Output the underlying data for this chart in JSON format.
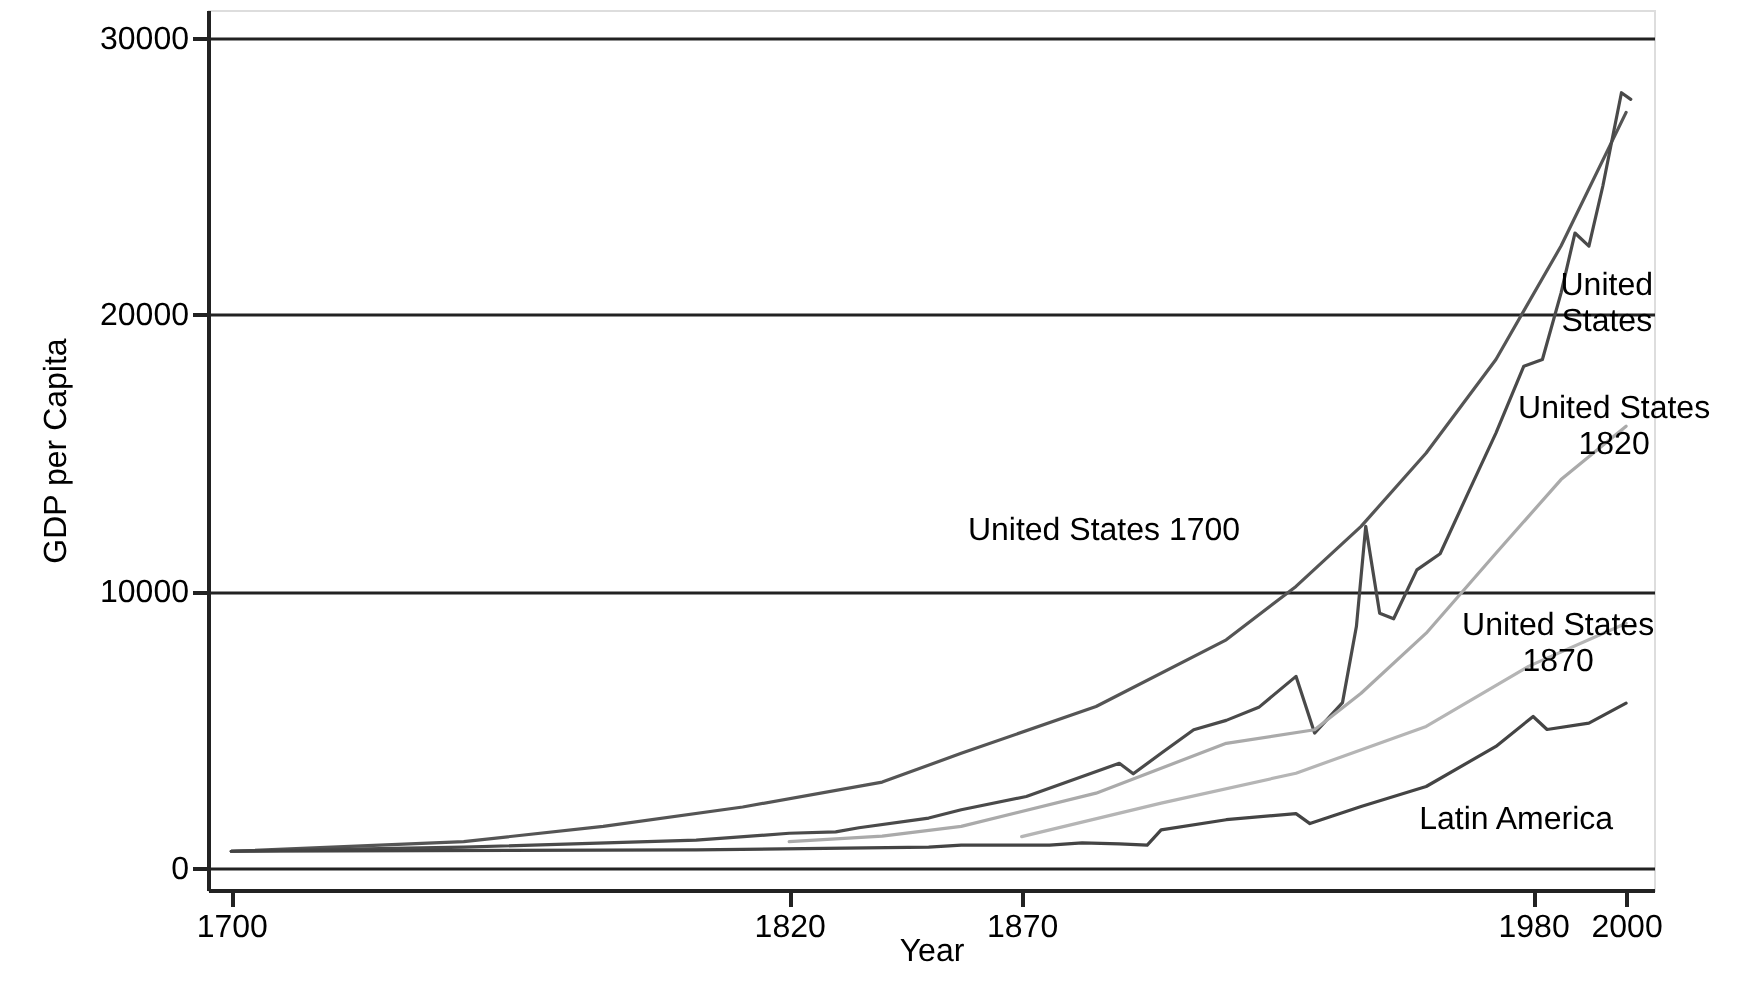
{
  "chart_data": {
    "type": "line",
    "xlabel": "Year",
    "ylabel": "GDP per Capita",
    "xlim": [
      1695,
      2006
    ],
    "xticks": [
      1700,
      1820,
      1870,
      1980,
      2000
    ],
    "ylim": [
      -800,
      31000
    ],
    "yticks": [
      0,
      10000,
      20000,
      30000
    ],
    "grid": "y",
    "series": [
      {
        "name": "United States 1700",
        "color": "#555555",
        "x": [
          1700,
          1750,
          1780,
          1810,
          1840,
          1857,
          1886,
          1914,
          1929,
          1943,
          1957,
          1972,
          1986,
          2000
        ],
        "values": [
          600,
          950,
          1500,
          2200,
          3100,
          4140,
          5830,
          8240,
          10170,
          12340,
          14990,
          18370,
          22470,
          27300
        ]
      },
      {
        "name": "United\nStates",
        "color": "#4a4a4a",
        "x": [
          1700,
          1750,
          1800,
          1820,
          1830,
          1835,
          1850,
          1857,
          1871,
          1891,
          1894,
          1900,
          1907,
          1914,
          1921,
          1929,
          1933,
          1939,
          1942,
          1944,
          1947,
          1950,
          1955,
          1960,
          1966,
          1972,
          1978,
          1982,
          1986,
          1989,
          1992,
          1995,
          1999,
          2001
        ],
        "values": [
          600,
          750,
          1000,
          1250,
          1300,
          1450,
          1800,
          2100,
          2580,
          3780,
          3400,
          4140,
          4990,
          5330,
          5800,
          6920,
          4870,
          5970,
          8730,
          12340,
          9200,
          9000,
          10770,
          11350,
          13540,
          15710,
          18130,
          18370,
          20770,
          22940,
          22470,
          24640,
          28010,
          27770
        ]
      },
      {
        "name": "United States\n1820",
        "color": "#aaaaaa",
        "x": [
          1820,
          1840,
          1857,
          1886,
          1914,
          1933,
          1943,
          1957,
          1972,
          1986,
          2000
        ],
        "values": [
          950,
          1150,
          1500,
          2700,
          4500,
          4990,
          6310,
          8480,
          11370,
          14030,
          15960
        ]
      },
      {
        "name": "United States\n1870",
        "color": "#b5b5b5",
        "x": [
          1870,
          1900,
          1929,
          1957,
          1979,
          2000
        ],
        "values": [
          1130,
          2340,
          3420,
          5110,
          7280,
          8840
        ]
      },
      {
        "name": "Latin America",
        "color": "#444444",
        "x": [
          1700,
          1800,
          1850,
          1857,
          1876,
          1883,
          1891,
          1897,
          1900,
          1914,
          1929,
          1932,
          1943,
          1957,
          1972,
          1980,
          1983,
          1992,
          2000
        ],
        "values": [
          600,
          650,
          750,
          820,
          820,
          900,
          870,
          820,
          1370,
          1740,
          1960,
          1600,
          2220,
          2940,
          4390,
          5470,
          5000,
          5230,
          5950
        ]
      }
    ]
  }
}
